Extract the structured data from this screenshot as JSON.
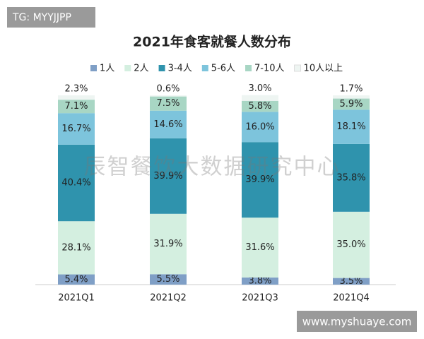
{
  "chart_data": {
    "type": "stacked_bar_100",
    "title": "2021年食客就餐人数分布",
    "categories": [
      "2021Q1",
      "2021Q2",
      "2021Q3",
      "2021Q4"
    ],
    "series": [
      {
        "name": "1人",
        "color": "#7f9fc6",
        "values": [
          5.4,
          5.5,
          3.8,
          3.5
        ],
        "value_labels": [
          "5.4%",
          "5.5%",
          "3.8%",
          "3.5%"
        ]
      },
      {
        "name": "2人",
        "color": "#d4efe0",
        "values": [
          28.1,
          31.9,
          31.6,
          35.0
        ],
        "value_labels": [
          "28.1%",
          "31.9%",
          "31.6%",
          "35.0%"
        ]
      },
      {
        "name": "3-4人",
        "color": "#2f93ad",
        "values": [
          40.4,
          39.9,
          39.9,
          35.8
        ],
        "value_labels": [
          "40.4%",
          "39.9%",
          "39.9%",
          "35.8%"
        ]
      },
      {
        "name": "5-6人",
        "color": "#7dc4dc",
        "values": [
          16.7,
          14.6,
          16.0,
          18.1
        ],
        "value_labels": [
          "16.7%",
          "14.6%",
          "16.0%",
          "18.1%"
        ]
      },
      {
        "name": "7-10人",
        "color": "#a8d6c4",
        "values": [
          7.1,
          7.5,
          5.8,
          5.9
        ],
        "value_labels": [
          "7.1%",
          "7.5%",
          "5.8%",
          "5.9%"
        ]
      },
      {
        "name": "10人以上",
        "color": "#eef5f2",
        "values": [
          2.3,
          0.6,
          3.0,
          1.7
        ],
        "value_labels": [
          "2.3%",
          "0.6%",
          "3.0%",
          "1.7%"
        ]
      }
    ],
    "annotations": [
      "TG: MYYJJPP",
      "辰智餐饮大数据研究中心",
      "www.myshuaye.com"
    ]
  }
}
